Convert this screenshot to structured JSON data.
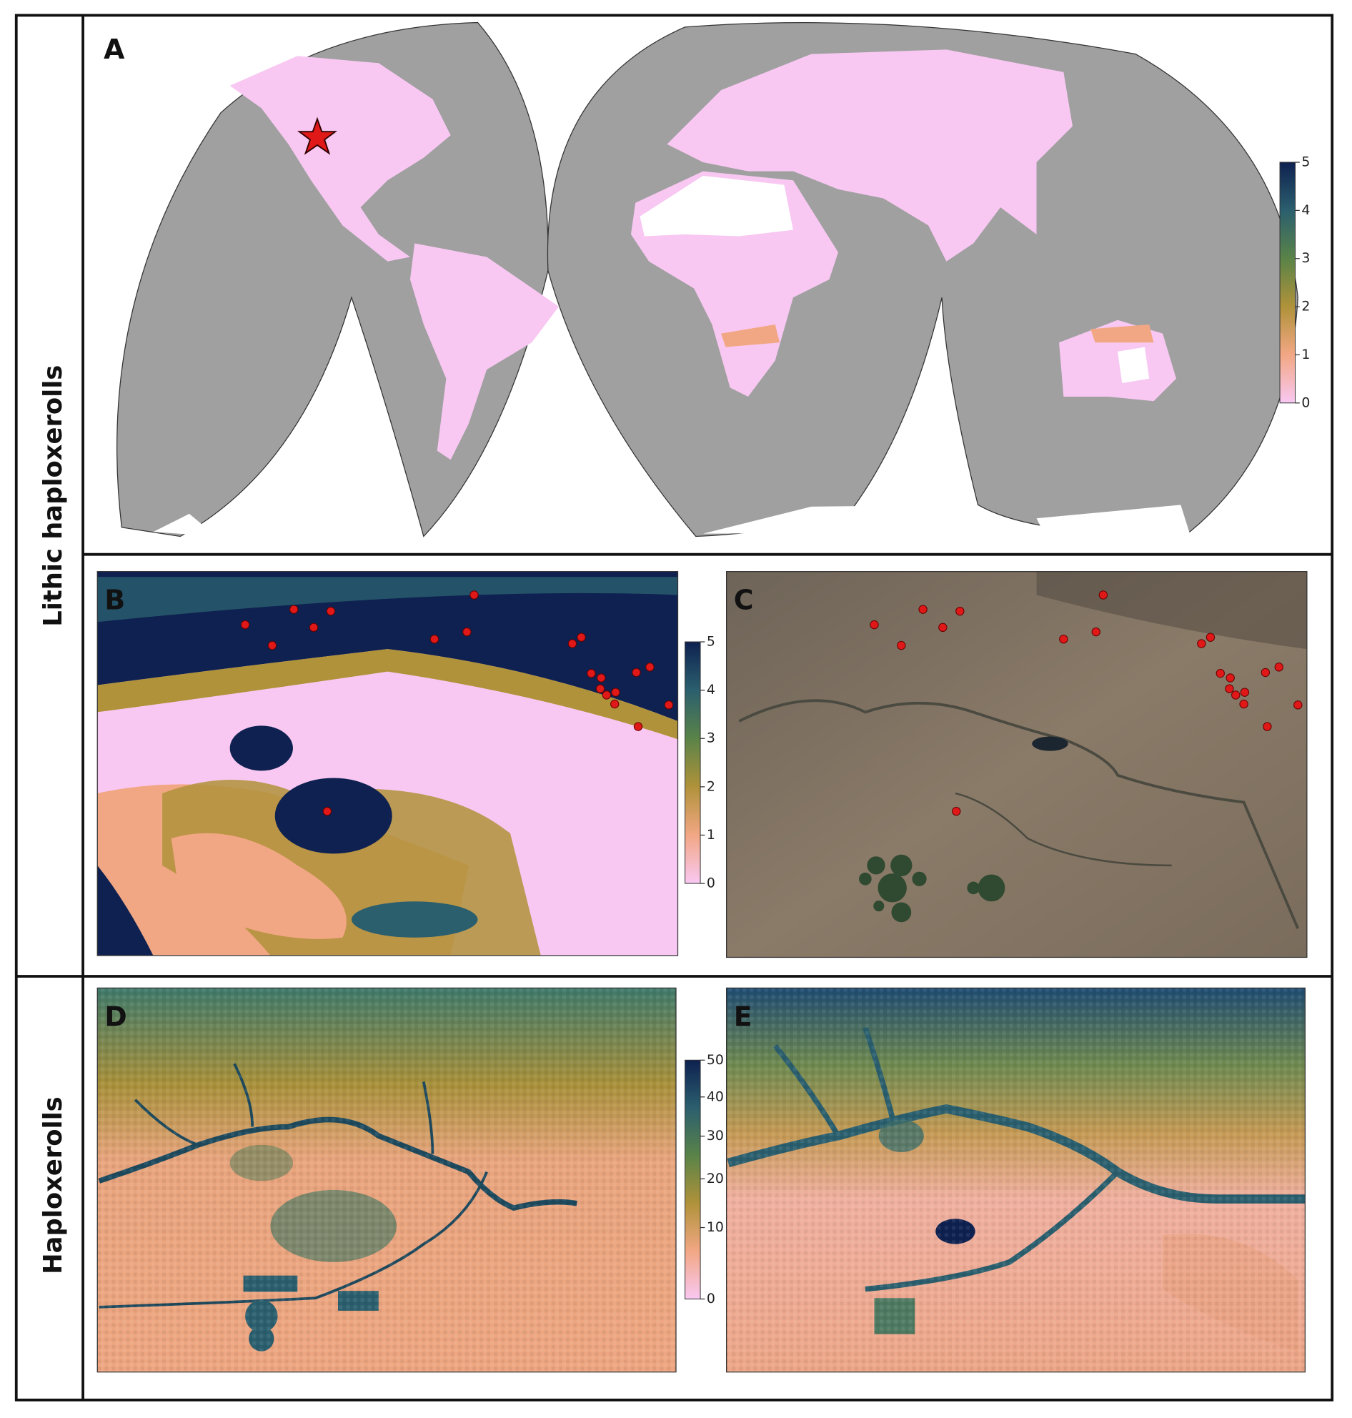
{
  "rows": [
    {
      "label": "Lithic haploxerolls"
    },
    {
      "label": "Haploxerolls"
    }
  ],
  "panels": [
    {
      "label": "A",
      "colorbar": {
        "lim": [
          0,
          5
        ],
        "ticks": [
          0,
          1,
          2,
          3,
          4,
          5
        ]
      }
    },
    {
      "label": "B",
      "colorbar": {
        "lim": [
          0,
          5
        ],
        "ticks": [
          0,
          1,
          2,
          3,
          4,
          5
        ]
      }
    },
    {
      "label": "C"
    },
    {
      "label": "D",
      "colorbar": {
        "lim": [
          0,
          50
        ],
        "ticks": [
          0,
          10,
          20,
          30,
          40,
          50
        ],
        "scale": "power",
        "exponent": 0.75
      }
    },
    {
      "label": "E"
    }
  ]
}
